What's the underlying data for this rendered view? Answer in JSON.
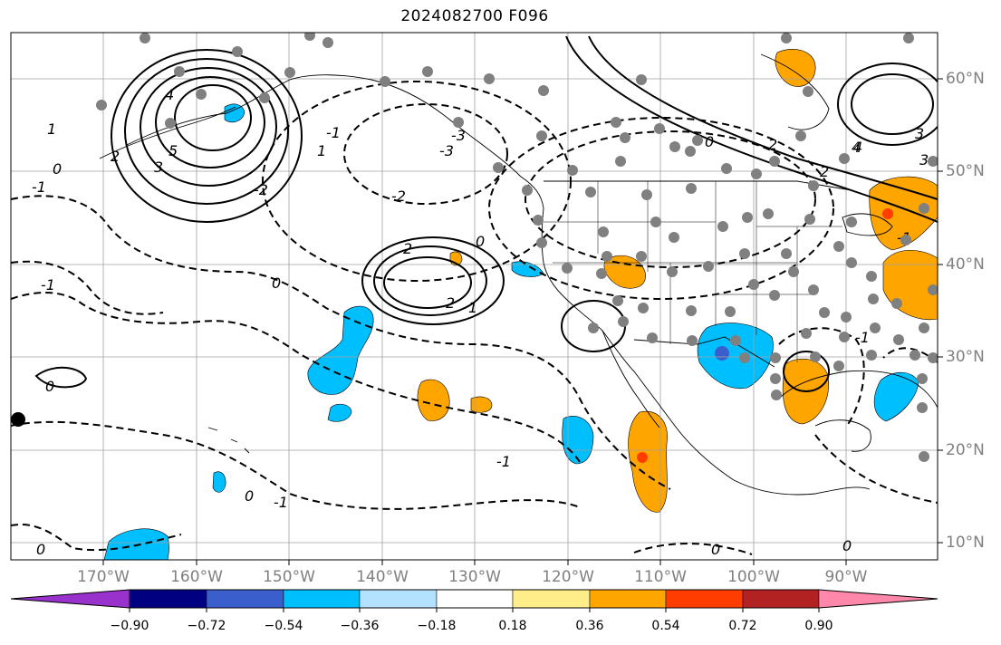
{
  "title": "2024082700 F096",
  "map": {
    "lon_labels": [
      "170°W",
      "160°W",
      "150°W",
      "140°W",
      "130°W",
      "120°W",
      "110°W",
      "100°W",
      "90°W"
    ],
    "lat_labels": [
      "60°N",
      "50°N",
      "40°N",
      "30°N",
      "20°N",
      "10°N"
    ],
    "contour_labels": [
      "3",
      "4",
      "5",
      "4",
      "3",
      "2",
      "1",
      "0",
      "-1",
      "-2",
      "-3",
      "2",
      "1",
      "0",
      "-1",
      "-2",
      "-3",
      "2",
      "1",
      "0",
      "-1",
      "0",
      "-1",
      "0",
      "2",
      "3",
      "4",
      "2",
      "-1",
      "0",
      "-1",
      "0",
      "-1",
      "0",
      "0"
    ],
    "colors": {
      "positive_mid": "#ffa500",
      "positive_high": "#ff3d00",
      "negative_mid": "#00bfff",
      "negative_high": "#3a5fcd",
      "station_dots": "#808080",
      "grid": "#a0a0a0"
    }
  },
  "colorbar": {
    "ticks": [
      "−0.90",
      "−0.72",
      "−0.54",
      "−0.36",
      "−0.18",
      "0.18",
      "0.36",
      "0.54",
      "0.72",
      "0.90"
    ],
    "colors": [
      "#9932cc",
      "#000080",
      "#3a5fcd",
      "#00bfff",
      "#b2e2ff",
      "#ffffff",
      "#ffed8a",
      "#ffa500",
      "#ff3d00",
      "#b22222",
      "#ff88aa"
    ]
  }
}
